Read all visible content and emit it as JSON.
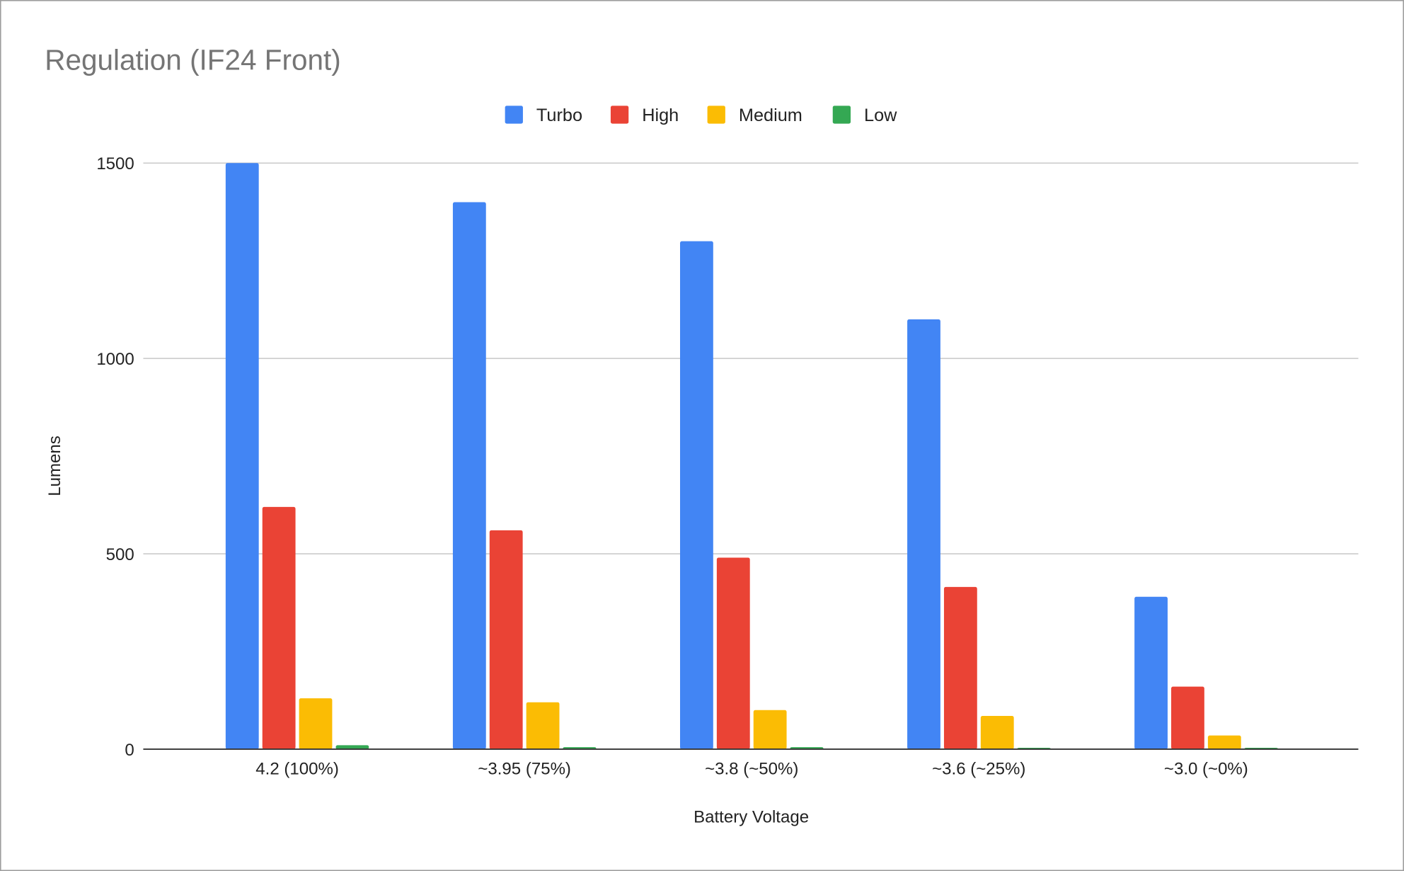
{
  "chart_data": {
    "type": "bar",
    "title": "Regulation (IF24 Front)",
    "xlabel": "Battery Voltage",
    "ylabel": "Lumens",
    "ylim": [
      0,
      1500
    ],
    "yticks": [
      0,
      500,
      1000,
      1500
    ],
    "ytick_labels": [
      "0",
      "500",
      "1000",
      "1500"
    ],
    "grid": true,
    "legend_position": "top-center",
    "categories": [
      "4.2 (100%)",
      "~3.95 (75%)",
      "~3.8 (~50%)",
      "~3.6 (~25%)",
      "~3.0 (~0%)"
    ],
    "series": [
      {
        "name": "Turbo",
        "color": "#4285f4",
        "values": [
          1500,
          1400,
          1300,
          1100,
          390
        ]
      },
      {
        "name": "High",
        "color": "#ea4335",
        "values": [
          620,
          560,
          490,
          415,
          160
        ]
      },
      {
        "name": "Medium",
        "color": "#fbbc04",
        "values": [
          130,
          120,
          100,
          85,
          35
        ]
      },
      {
        "name": "Low",
        "color": "#34a853",
        "values": [
          10,
          5,
          5,
          1,
          1
        ]
      }
    ]
  }
}
